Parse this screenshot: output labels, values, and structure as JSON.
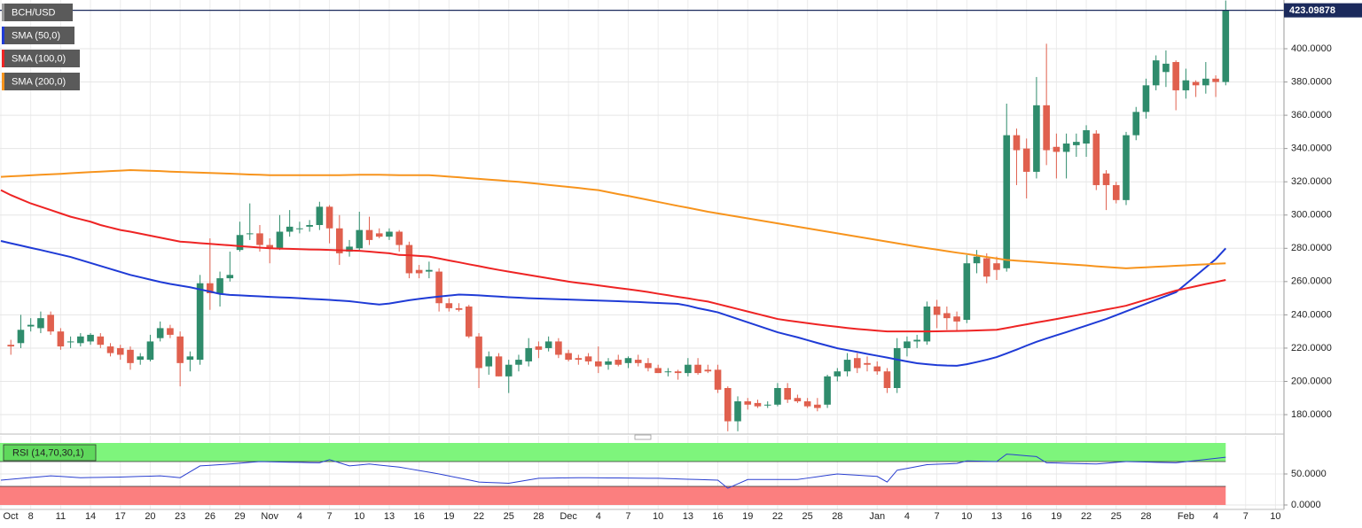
{
  "chart_data": {
    "type": "candlestick",
    "title": "BCH/USD",
    "up_color": "#2f8c6c",
    "down_color": "#e0604e",
    "grid": true,
    "ylim": [
      168.3,
      429.3
    ],
    "yticks": [
      {
        "value": 180,
        "label": "180.0000"
      },
      {
        "value": 200,
        "label": "200.0000"
      },
      {
        "value": 220,
        "label": "220.0000"
      },
      {
        "value": 240,
        "label": "240.0000"
      },
      {
        "value": 260,
        "label": "260.0000"
      },
      {
        "value": 280,
        "label": "280.0000"
      },
      {
        "value": 300,
        "label": "300.0000"
      },
      {
        "value": 320,
        "label": "320.0000"
      },
      {
        "value": 340,
        "label": "340.0000"
      },
      {
        "value": 360,
        "label": "360.0000"
      },
      {
        "value": 380,
        "label": "380.0000"
      },
      {
        "value": 400,
        "label": "400.0000"
      }
    ],
    "last_price": 423.09878,
    "last_price_color": "#1b2a5c",
    "categories": [
      "Oct",
      null,
      null,
      "8",
      null,
      null,
      "11",
      null,
      null,
      "14",
      null,
      null,
      "17",
      null,
      null,
      "20",
      null,
      null,
      "23",
      null,
      null,
      "26",
      null,
      null,
      "29",
      null,
      null,
      "Nov",
      null,
      null,
      "4",
      null,
      null,
      "7",
      null,
      null,
      "10",
      null,
      null,
      "13",
      null,
      null,
      "16",
      null,
      null,
      "19",
      null,
      null,
      "22",
      null,
      null,
      "25",
      null,
      null,
      "28",
      null,
      null,
      "Dec",
      null,
      null,
      "4",
      null,
      null,
      "7",
      null,
      null,
      "10",
      null,
      null,
      "13",
      null,
      null,
      "16",
      null,
      null,
      "19",
      null,
      null,
      "22",
      null,
      null,
      "25",
      null,
      null,
      "28",
      null,
      null,
      null,
      "Jan",
      null,
      null,
      "4",
      null,
      null,
      "7",
      null,
      null,
      "10",
      null,
      null,
      "13",
      null,
      null,
      "16",
      null,
      null,
      "19",
      null,
      null,
      "22",
      null,
      null,
      "25",
      null,
      null,
      "28",
      null,
      null,
      null,
      "Feb",
      null,
      null,
      "4",
      null,
      null,
      "7",
      null,
      null,
      "10"
    ],
    "ohlc": [
      null,
      [
        222,
        225,
        216,
        221
      ],
      [
        223,
        240,
        220,
        231
      ],
      [
        233,
        238,
        230,
        234
      ],
      [
        232,
        242,
        229,
        238
      ],
      [
        240,
        242,
        228,
        230
      ],
      [
        230,
        232,
        219,
        221
      ],
      [
        224,
        227,
        220,
        224
      ],
      [
        223,
        229,
        221,
        227
      ],
      [
        224,
        229,
        222,
        228
      ],
      [
        227,
        229,
        220,
        222
      ],
      [
        221,
        223,
        215,
        217
      ],
      [
        220,
        222,
        213,
        216
      ],
      [
        219,
        221,
        207,
        211
      ],
      [
        213,
        217,
        210,
        215
      ],
      [
        213,
        228,
        212,
        224
      ],
      [
        226,
        236,
        224,
        232
      ],
      [
        232,
        234,
        226,
        228
      ],
      [
        227,
        230,
        197,
        211
      ],
      [
        213,
        218,
        206,
        215
      ],
      [
        213,
        264,
        210,
        259
      ],
      [
        259,
        286,
        243,
        253
      ],
      [
        253,
        266,
        245,
        262
      ],
      [
        262,
        278,
        260,
        264
      ],
      [
        279,
        296,
        278,
        288
      ],
      [
        289,
        307,
        285,
        289
      ],
      [
        289,
        294,
        278,
        282
      ],
      [
        282,
        286,
        271,
        280
      ],
      [
        280,
        300,
        279,
        290
      ],
      [
        290,
        303,
        287,
        293
      ],
      [
        292,
        296,
        289,
        292
      ],
      [
        293,
        297,
        290,
        294
      ],
      [
        294,
        308,
        291,
        305
      ],
      [
        305,
        306,
        283,
        292
      ],
      [
        292,
        300,
        270,
        277
      ],
      [
        278,
        285,
        275,
        281
      ],
      [
        280,
        302,
        279,
        291
      ],
      [
        291,
        299,
        282,
        285
      ],
      [
        289,
        292,
        286,
        287
      ],
      [
        287,
        292,
        285,
        290
      ],
      [
        290,
        291,
        278,
        282
      ],
      [
        282,
        284,
        262,
        265
      ],
      [
        267,
        270,
        262,
        265
      ],
      [
        266,
        272,
        262,
        267
      ],
      [
        266,
        268,
        242,
        247
      ],
      [
        247,
        250,
        242,
        244
      ],
      [
        244,
        247,
        242,
        243
      ],
      [
        245,
        246,
        226,
        227
      ],
      [
        227,
        229,
        196,
        208
      ],
      [
        209,
        218,
        204,
        215
      ],
      [
        215,
        217,
        203,
        203
      ],
      [
        203,
        213,
        193,
        210
      ],
      [
        210,
        216,
        206,
        213
      ],
      [
        212,
        226,
        209,
        220
      ],
      [
        221,
        224,
        214,
        219
      ],
      [
        220,
        227,
        218,
        224
      ],
      [
        224,
        226,
        214,
        216
      ],
      [
        217,
        219,
        212,
        213
      ],
      [
        214,
        216,
        210,
        213
      ],
      [
        215,
        217,
        210,
        212
      ],
      [
        212,
        221,
        205,
        209
      ],
      [
        210,
        214,
        207,
        212
      ],
      [
        213,
        216,
        209,
        210
      ],
      [
        211,
        215,
        208,
        214
      ],
      [
        213,
        216,
        209,
        211
      ],
      [
        211,
        214,
        206,
        208
      ],
      [
        208,
        210,
        205,
        205
      ],
      [
        206,
        208,
        203,
        206
      ],
      [
        206,
        207,
        201,
        205
      ],
      [
        205,
        214,
        203,
        210
      ],
      [
        210,
        214,
        204,
        205
      ],
      [
        207,
        210,
        205,
        206
      ],
      [
        207,
        210,
        193,
        195
      ],
      [
        196,
        197,
        170,
        176
      ],
      [
        176,
        191,
        170,
        188
      ],
      [
        188,
        190,
        183,
        186
      ],
      [
        187,
        189,
        184,
        185
      ],
      [
        186,
        188,
        184,
        186
      ],
      [
        186,
        199,
        185,
        196
      ],
      [
        196,
        199,
        187,
        189
      ],
      [
        190,
        192,
        187,
        188
      ],
      [
        188,
        190,
        184,
        185
      ],
      [
        186,
        190,
        182,
        184
      ],
      [
        186,
        204,
        184,
        203
      ],
      [
        203,
        208,
        200,
        206
      ],
      [
        206,
        217,
        203,
        213
      ],
      [
        214,
        217,
        205,
        208
      ],
      [
        211,
        215,
        206,
        210
      ],
      [
        209,
        212,
        204,
        206
      ],
      [
        206,
        208,
        193,
        196
      ],
      [
        196,
        226,
        193,
        220
      ],
      [
        220,
        227,
        215,
        224
      ],
      [
        224,
        228,
        220,
        225
      ],
      [
        224,
        248,
        222,
        245
      ],
      [
        245,
        249,
        232,
        240
      ],
      [
        241,
        245,
        231,
        238
      ],
      [
        239,
        242,
        230,
        236
      ],
      [
        237,
        276,
        235,
        271
      ],
      [
        271,
        279,
        265,
        275
      ],
      [
        274,
        277,
        259,
        263
      ],
      [
        271,
        275,
        261,
        267
      ],
      [
        268,
        367,
        266,
        348
      ],
      [
        348,
        352,
        318,
        339
      ],
      [
        340,
        346,
        310,
        326
      ],
      [
        326,
        383,
        322,
        366
      ],
      [
        366,
        403,
        330,
        339
      ],
      [
        341,
        349,
        322,
        338
      ],
      [
        338,
        349,
        322,
        343
      ],
      [
        342,
        349,
        335,
        344
      ],
      [
        343,
        354,
        335,
        351
      ],
      [
        349,
        351,
        315,
        318
      ],
      [
        325,
        327,
        303,
        318
      ],
      [
        318,
        320,
        307,
        309
      ],
      [
        309,
        350,
        306,
        348
      ],
      [
        348,
        365,
        345,
        362
      ],
      [
        362,
        382,
        358,
        378
      ],
      [
        378,
        396,
        375,
        393
      ],
      [
        386,
        399,
        377,
        391
      ],
      [
        392,
        393,
        363,
        375
      ],
      [
        375,
        388,
        370,
        381
      ],
      [
        380,
        381,
        371,
        378
      ],
      [
        378,
        392,
        373,
        382
      ],
      [
        382,
        384,
        371,
        380
      ],
      [
        380,
        429,
        378,
        423
      ],
      null,
      null,
      null,
      null,
      null
    ],
    "series": [
      {
        "name": "SMA (50,0)",
        "color": "#1f3bd6",
        "values": [
          284.4,
          283,
          281.7,
          280.3,
          279,
          277.6,
          276.2,
          274.8,
          273,
          271.2,
          269.4,
          267.6,
          265.8,
          264,
          262.6,
          261.2,
          259.8,
          258.6,
          257.6,
          256.6,
          255.3,
          254,
          252.6,
          252,
          251.7,
          251.4,
          251.1,
          250.8,
          250.5,
          250.3,
          250,
          249.6,
          249.3,
          249,
          248.6,
          248.2,
          247.5,
          246.8,
          246.2,
          246.8,
          247.8,
          248.8,
          249.6,
          250.3,
          251,
          251.6,
          252.2,
          252,
          251.7,
          251.3,
          251,
          250.6,
          250.3,
          250,
          249.8,
          249.6,
          249.4,
          249.2,
          249,
          248.8,
          248.6,
          248.4,
          248.2,
          247.9,
          247.7,
          247.4,
          247.1,
          246.9,
          246.6,
          245.5,
          244,
          242.8,
          241.5,
          239.5,
          237.5,
          235.5,
          233.5,
          231.5,
          229.5,
          228,
          226.5,
          224.8,
          223.1,
          221.5,
          219.9,
          218.8,
          217.7,
          216.5,
          215.4,
          214.3,
          213.1,
          212,
          210.9,
          210.3,
          209.8,
          209.5,
          209.4,
          210.3,
          211.6,
          213,
          214.6,
          216.8,
          219.1,
          221.5,
          223.8,
          225.8,
          227.7,
          229.6,
          231.6,
          233.5,
          235.5,
          237.5,
          239.8,
          242.1,
          244.4,
          246.7,
          249,
          251.3,
          253.6,
          258.5,
          263.5,
          268.5,
          273.5,
          280,
          null,
          null,
          null,
          null,
          null
        ]
      },
      {
        "name": "SMA (100,0)",
        "color": "#ee2424",
        "values": [
          315,
          312,
          309.5,
          307,
          305,
          303,
          301,
          299,
          297.5,
          296,
          294,
          292.5,
          291,
          290,
          288.8,
          287.6,
          286.4,
          285.2,
          284,
          283.6,
          283.1,
          282.7,
          282.2,
          281.8,
          281.3,
          280.9,
          280.4,
          280,
          279.8,
          279.7,
          279.5,
          279.3,
          279.2,
          279,
          278.8,
          278.7,
          278.5,
          278,
          277.5,
          277,
          276,
          275.8,
          275.4,
          275,
          273.9,
          272.7,
          271.6,
          270.4,
          269.3,
          268.1,
          267,
          266,
          265,
          264,
          263,
          262,
          261,
          260,
          259.2,
          258.5,
          257.7,
          256.9,
          256.1,
          255.4,
          254.6,
          253.7,
          252.7,
          251.8,
          250.8,
          249.9,
          248.9,
          248,
          246.5,
          245,
          243.5,
          242,
          240.5,
          239,
          237.5,
          236.6,
          235.8,
          235,
          234.2,
          233.5,
          232.8,
          232.1,
          231.5,
          231,
          230.5,
          230,
          230,
          230,
          230,
          230,
          230.1,
          230.2,
          230.3,
          230.4,
          230.6,
          230.8,
          231,
          232.1,
          233.2,
          234.3,
          235.4,
          236.4,
          237.5,
          238.6,
          239.7,
          240.9,
          242,
          243.2,
          244.3,
          245.5,
          247.3,
          249.1,
          250.9,
          252.8,
          254.6,
          255.9,
          257.2,
          258.5,
          259.7,
          261,
          null,
          null,
          null,
          null,
          null
        ]
      },
      {
        "name": "SMA (200,0)",
        "color": "#f7941d",
        "values": [
          323,
          323.3,
          323.6,
          323.9,
          324.2,
          324.5,
          324.8,
          325.2,
          325.5,
          325.8,
          326.1,
          326.4,
          326.7,
          327,
          326.8,
          326.6,
          326.4,
          326.1,
          325.9,
          325.7,
          325.5,
          325.3,
          325.1,
          324.9,
          324.6,
          324.4,
          324.2,
          324,
          324,
          324,
          324,
          324,
          324,
          324,
          324,
          324.1,
          324.2,
          324.2,
          324.2,
          324.1,
          324,
          324,
          324,
          324,
          323.6,
          323.1,
          322.7,
          322.2,
          321.8,
          321.3,
          320.9,
          320.4,
          320,
          319.4,
          318.8,
          318.1,
          317.5,
          316.9,
          316.3,
          315.6,
          315,
          313.8,
          312.6,
          311.5,
          310.3,
          309.1,
          307.9,
          306.7,
          305.5,
          304.4,
          303.2,
          302,
          301,
          300,
          299,
          298,
          297,
          296,
          295,
          294,
          293,
          292,
          291,
          290,
          289,
          288,
          287,
          286,
          285,
          284,
          283,
          282,
          281,
          280.1,
          279.2,
          278.3,
          277.4,
          276.6,
          275.7,
          274.8,
          273.9,
          273,
          272.6,
          272.2,
          271.8,
          271.3,
          270.9,
          270.5,
          270.1,
          269.7,
          269.2,
          268.8,
          268.4,
          268,
          268.3,
          268.6,
          268.9,
          269.2,
          269.5,
          269.8,
          270.1,
          270.4,
          270.7,
          271,
          null,
          null,
          null,
          null,
          null
        ]
      }
    ],
    "rsi": {
      "name": "RSI (14,70,30,1)",
      "color": "#2a3fd0",
      "ylim": [
        0,
        100
      ],
      "yticks": [
        {
          "value": 50,
          "label": "50.0000"
        },
        {
          "value": 0,
          "label": "0.0000"
        }
      ],
      "overbought": 70,
      "oversold": 30,
      "overbought_color": "#7ef57c",
      "oversold_color": "#fb7f7f",
      "values": [
        40,
        41.4,
        42.8,
        44.2,
        45.6,
        47,
        46,
        45,
        44,
        44.3,
        44.5,
        44.8,
        45,
        45.5,
        46,
        46.5,
        47,
        45.5,
        44,
        53.5,
        63,
        64,
        65,
        66,
        67.3,
        68.7,
        70,
        69.7,
        69.3,
        69,
        68.7,
        68.3,
        68,
        73,
        68,
        63,
        64.5,
        66,
        64.3,
        62.7,
        61,
        58.3,
        55.5,
        52.8,
        50,
        46.8,
        43.5,
        40.3,
        37,
        36.3,
        35.7,
        35,
        37.7,
        40.3,
        43,
        43.3,
        43.5,
        43.8,
        44,
        43.9,
        43.8,
        43.6,
        43.5,
        43.4,
        43.3,
        43.1,
        43,
        42.5,
        42,
        41.5,
        41,
        40.5,
        40,
        27,
        34,
        41,
        41,
        41,
        41,
        41,
        41,
        43.3,
        45.5,
        47.8,
        50,
        49,
        48,
        47,
        46,
        37,
        56,
        59,
        62,
        65,
        65.7,
        66.3,
        67,
        71,
        70.7,
        70.3,
        70,
        82,
        80.7,
        79.3,
        78,
        68,
        67.6,
        67.2,
        66.8,
        66.4,
        66,
        67.3,
        68.7,
        70,
        69.6,
        69.2,
        68.8,
        68.4,
        68,
        69.8,
        71.6,
        73.4,
        75.2,
        77,
        null,
        null,
        null,
        null,
        null
      ]
    }
  }
}
